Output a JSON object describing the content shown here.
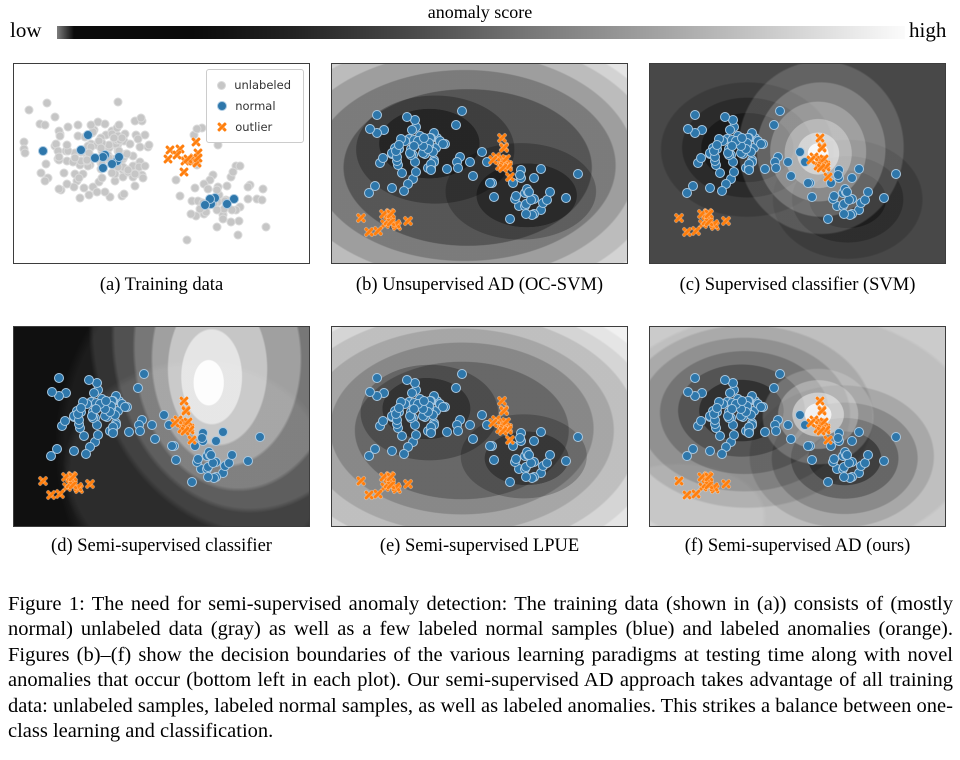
{
  "colorbar": {
    "title": "anomaly score",
    "left_label": "low",
    "right_label": "high",
    "gradient_endpoints": [
      "#0b0b0b",
      "#fbfbfb"
    ]
  },
  "legend": {
    "items": [
      {
        "label": "unlabeled",
        "marker": "circle",
        "color": "#c6c6c6"
      },
      {
        "label": "normal",
        "marker": "circle",
        "color": "#2e77ab"
      },
      {
        "label": "outlier",
        "marker": "x",
        "color": "#ff7f0e"
      }
    ]
  },
  "panels": [
    {
      "id": "a",
      "caption": "(a) Training data",
      "dataset": "train"
    },
    {
      "id": "b",
      "caption": "(b) Unsupervised AD (OC-SVM)",
      "dataset": "test"
    },
    {
      "id": "c",
      "caption": "(c) Supervised classifier (SVM)",
      "dataset": "test"
    },
    {
      "id": "d",
      "caption": "(d) Semi-supervised classifier",
      "dataset": "test"
    },
    {
      "id": "e",
      "caption": "(e) Semi-supervised LPUE",
      "dataset": "test"
    },
    {
      "id": "f",
      "caption": "(f) Semi-supervised AD (ours)",
      "dataset": "test"
    }
  ],
  "chart_data": {
    "type": "scatter",
    "colors": {
      "unlabeled": "#c6c6c6",
      "normal": "#2e77ab",
      "outlier": "#ff7f0e"
    },
    "score_colormap": "grayscale low=dark high=light",
    "datasets": {
      "train": {
        "seed": 9,
        "clusters": [
          {
            "class": "unlabeled",
            "marker": "circle",
            "cx": 0.3,
            "cy": 0.44,
            "sx": 0.105,
            "sy": 0.125,
            "n": 150
          },
          {
            "class": "unlabeled",
            "marker": "circle",
            "cx": 0.695,
            "cy": 0.69,
            "sx": 0.075,
            "sy": 0.085,
            "n": 52
          },
          {
            "class": "unlabeled",
            "marker": "circle",
            "cx": 0.61,
            "cy": 0.32,
            "sx": 0.04,
            "sy": 0.025,
            "n": 3
          },
          {
            "class": "normal",
            "marker": "circle",
            "cx": 0.295,
            "cy": 0.455,
            "sx": 0.055,
            "sy": 0.05,
            "n": 10
          },
          {
            "class": "normal",
            "marker": "circle",
            "cx": 0.7,
            "cy": 0.7,
            "sx": 0.035,
            "sy": 0.03,
            "n": 6
          },
          {
            "class": "outlier",
            "marker": "x",
            "cx": 0.588,
            "cy": 0.465,
            "sx": 0.032,
            "sy": 0.04,
            "n": 16
          }
        ]
      },
      "test": {
        "seed": 4,
        "clusters": [
          {
            "class": "normal",
            "marker": "circle",
            "cx": 0.295,
            "cy": 0.425,
            "sx": 0.1,
            "sy": 0.1,
            "n": 72
          },
          {
            "class": "normal",
            "marker": "circle",
            "cx": 0.66,
            "cy": 0.66,
            "sx": 0.065,
            "sy": 0.055,
            "n": 30
          },
          {
            "class": "outlier",
            "marker": "x",
            "cx": 0.582,
            "cy": 0.48,
            "sx": 0.022,
            "sy": 0.05,
            "n": 13
          },
          {
            "class": "outlier",
            "marker": "x",
            "cx": 0.193,
            "cy": 0.8,
            "sx": 0.022,
            "sy": 0.026,
            "n": 10
          },
          {
            "class": "outlier",
            "marker": "x",
            "points": [
              [
                0.098,
                0.775
              ],
              [
                0.125,
                0.845
              ],
              [
                0.258,
                0.79
              ]
            ]
          }
        ]
      }
    }
  },
  "figure_caption": "Figure 1: The need for semi-supervised anomaly detection: The training data (shown in (a)) consists of (mostly normal) unlabeled data (gray) as well as a few labeled normal samples (blue) and labeled anomalies (orange). Figures (b)–(f) show the decision boundaries of the various learning paradigms at testing time along with novel anomalies that occur (bottom left in each plot). Our semi-supervised AD approach takes advantage of all training data: unlabeled samples, labeled normal samples, as well as labeled anomalies. This strikes a balance between one-class learning and classification."
}
